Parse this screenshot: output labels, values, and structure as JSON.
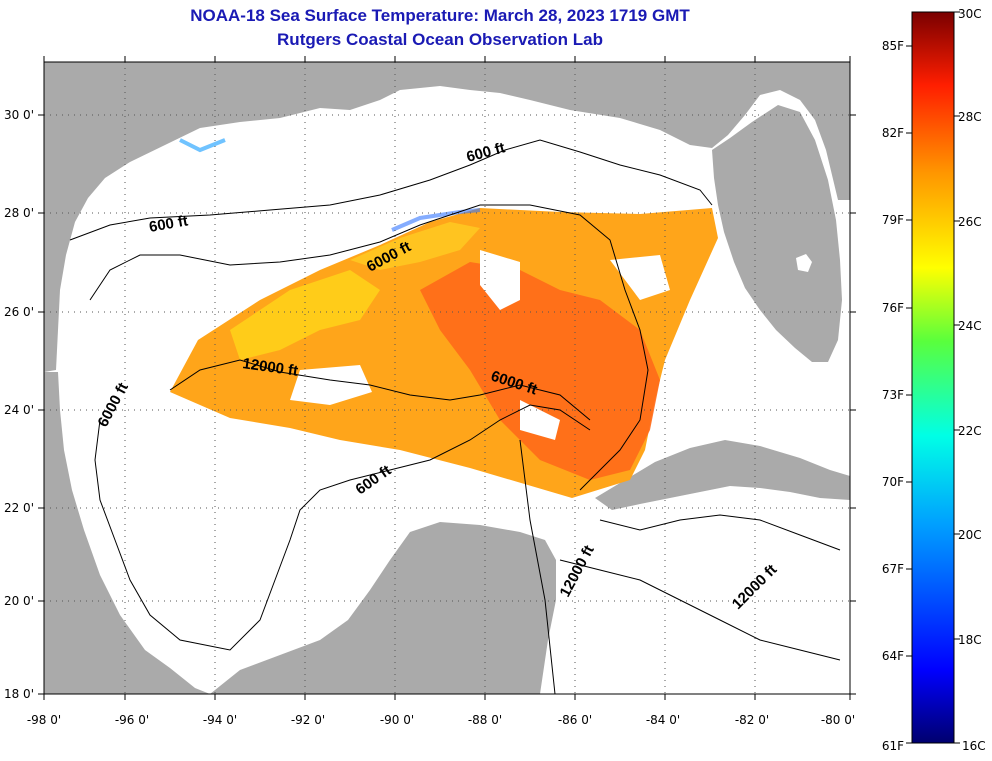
{
  "header": {
    "title": "NOAA-18 Sea Surface Temperature:  March 28, 2023 1719 GMT",
    "subtitle": "Rutgers Coastal Ocean Observation Lab"
  },
  "map": {
    "lon_ticks": [
      "-98 0'",
      "-96 0'",
      "-94 0'",
      "-92 0'",
      "-90 0'",
      "-88 0'",
      "-86 0'",
      "-84 0'",
      "-82 0'",
      "-80 0'"
    ],
    "lat_ticks": [
      "18 0'",
      "20 0'",
      "22 0'",
      "24 0'",
      "26 0'",
      "28 0'",
      "30 0'"
    ],
    "depth_labels": [
      "600 ft",
      "600 ft",
      "600 ft",
      "6000 ft",
      "6000 ft",
      "6000 ft",
      "12000 ft",
      "12000 ft",
      "12000 ft"
    ],
    "colors": {
      "land": "#aaaaaa",
      "ocean": "#ffffff",
      "sst_warm": "#ff6a1a",
      "sst_mid": "#ffa51a",
      "sst_cool": "#ffd21a"
    }
  },
  "colorbar": {
    "celsius": [
      "30C",
      "28C",
      "26C",
      "24C",
      "22C",
      "20C",
      "18C",
      "16C"
    ],
    "fahrenheit": [
      "85F",
      "82F",
      "79F",
      "76F",
      "73F",
      "70F",
      "67F",
      "64F",
      "61F"
    ]
  }
}
